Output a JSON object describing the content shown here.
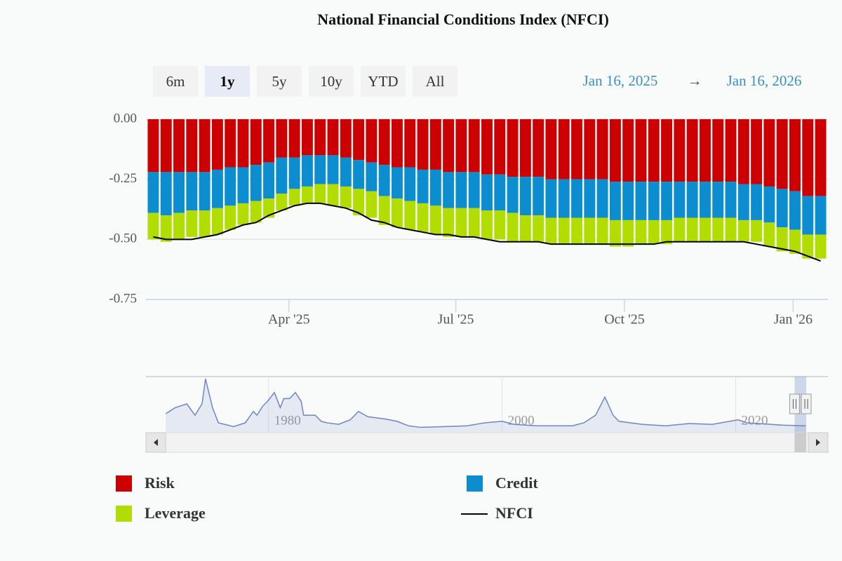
{
  "chart_data": {
    "type": "bar",
    "title": "National Financial Conditions Index (NFCI)",
    "range_selector": {
      "buttons": [
        "6m",
        "1y",
        "5y",
        "10y",
        "YTD",
        "All"
      ],
      "selected": 1,
      "from": "Jan 16, 2025",
      "arrow": "→",
      "to": "Jan 16, 2026"
    },
    "x": [
      "2025-01-17",
      "2025-01-24",
      "2025-01-31",
      "2025-02-07",
      "2025-02-14",
      "2025-02-21",
      "2025-02-28",
      "2025-03-07",
      "2025-03-14",
      "2025-03-21",
      "2025-03-28",
      "2025-04-04",
      "2025-04-11",
      "2025-04-18",
      "2025-04-25",
      "2025-05-02",
      "2025-05-09",
      "2025-05-16",
      "2025-05-23",
      "2025-05-30",
      "2025-06-06",
      "2025-06-13",
      "2025-06-20",
      "2025-06-27",
      "2025-07-04",
      "2025-07-11",
      "2025-07-18",
      "2025-07-25",
      "2025-08-01",
      "2025-08-08",
      "2025-08-15",
      "2025-08-22",
      "2025-08-29",
      "2025-09-05",
      "2025-09-12",
      "2025-09-19",
      "2025-09-26",
      "2025-10-03",
      "2025-10-10",
      "2025-10-17",
      "2025-10-24",
      "2025-10-31",
      "2025-11-07",
      "2025-11-14",
      "2025-11-21",
      "2025-11-28",
      "2025-12-05",
      "2025-12-12",
      "2025-12-19",
      "2025-12-26",
      "2026-01-02",
      "2026-01-09",
      "2026-01-16"
    ],
    "series": [
      {
        "name": "Risk",
        "color": "#cc0000",
        "values": [
          -0.22,
          -0.22,
          -0.22,
          -0.22,
          -0.22,
          -0.21,
          -0.2,
          -0.2,
          -0.19,
          -0.18,
          -0.16,
          -0.16,
          -0.15,
          -0.15,
          -0.15,
          -0.16,
          -0.17,
          -0.18,
          -0.19,
          -0.2,
          -0.2,
          -0.21,
          -0.21,
          -0.22,
          -0.22,
          -0.22,
          -0.23,
          -0.23,
          -0.24,
          -0.24,
          -0.24,
          -0.25,
          -0.25,
          -0.25,
          -0.25,
          -0.25,
          -0.26,
          -0.26,
          -0.26,
          -0.26,
          -0.26,
          -0.26,
          -0.26,
          -0.26,
          -0.26,
          -0.26,
          -0.27,
          -0.27,
          -0.28,
          -0.29,
          -0.3,
          -0.32,
          -0.32
        ]
      },
      {
        "name": "Credit",
        "color": "#0b8dcf",
        "values": [
          -0.17,
          -0.18,
          -0.17,
          -0.16,
          -0.16,
          -0.16,
          -0.16,
          -0.15,
          -0.15,
          -0.15,
          -0.15,
          -0.13,
          -0.13,
          -0.12,
          -0.12,
          -0.12,
          -0.12,
          -0.12,
          -0.13,
          -0.13,
          -0.14,
          -0.14,
          -0.15,
          -0.15,
          -0.15,
          -0.15,
          -0.15,
          -0.15,
          -0.15,
          -0.16,
          -0.16,
          -0.16,
          -0.16,
          -0.16,
          -0.16,
          -0.16,
          -0.16,
          -0.16,
          -0.16,
          -0.16,
          -0.16,
          -0.15,
          -0.15,
          -0.15,
          -0.15,
          -0.15,
          -0.15,
          -0.15,
          -0.15,
          -0.16,
          -0.16,
          -0.16,
          -0.16
        ]
      },
      {
        "name": "Leverage",
        "color": "#b2dd00",
        "values": [
          -0.11,
          -0.11,
          -0.11,
          -0.11,
          -0.11,
          -0.11,
          -0.1,
          -0.09,
          -0.09,
          -0.08,
          -0.07,
          -0.07,
          -0.07,
          -0.08,
          -0.09,
          -0.09,
          -0.11,
          -0.11,
          -0.12,
          -0.12,
          -0.12,
          -0.12,
          -0.12,
          -0.12,
          -0.12,
          -0.12,
          -0.12,
          -0.12,
          -0.12,
          -0.11,
          -0.11,
          -0.11,
          -0.11,
          -0.11,
          -0.11,
          -0.11,
          -0.11,
          -0.11,
          -0.1,
          -0.1,
          -0.1,
          -0.1,
          -0.1,
          -0.1,
          -0.1,
          -0.1,
          -0.09,
          -0.09,
          -0.1,
          -0.1,
          -0.1,
          -0.1,
          -0.1
        ]
      },
      {
        "name": "NFCI",
        "type": "line",
        "color": "#000000",
        "values": [
          -0.49,
          -0.5,
          -0.5,
          -0.5,
          -0.49,
          -0.48,
          -0.46,
          -0.44,
          -0.43,
          -0.4,
          -0.38,
          -0.36,
          -0.35,
          -0.35,
          -0.36,
          -0.37,
          -0.39,
          -0.42,
          -0.43,
          -0.45,
          -0.46,
          -0.47,
          -0.48,
          -0.48,
          -0.49,
          -0.49,
          -0.5,
          -0.51,
          -0.51,
          -0.51,
          -0.51,
          -0.52,
          -0.52,
          -0.52,
          -0.52,
          -0.52,
          -0.52,
          -0.52,
          -0.52,
          -0.52,
          -0.51,
          -0.51,
          -0.51,
          -0.51,
          -0.51,
          -0.51,
          -0.51,
          -0.52,
          -0.53,
          -0.54,
          -0.55,
          -0.57,
          -0.59
        ]
      }
    ],
    "xlim": [
      "2025-01-13",
      "2026-01-20"
    ],
    "xticks": [
      {
        "value": "2025-04-01",
        "label": "Apr '25"
      },
      {
        "value": "2025-07-01",
        "label": "Jul '25"
      },
      {
        "value": "2025-10-01",
        "label": "Oct '25"
      },
      {
        "value": "2026-01-01",
        "label": "Jan '26"
      }
    ],
    "ylim": [
      -0.75,
      0
    ],
    "yticks": [
      {
        "value": 0,
        "label": "0.00"
      },
      {
        "value": -0.25,
        "label": "-0.25"
      },
      {
        "value": -0.5,
        "label": "-0.50"
      },
      {
        "value": -0.75,
        "label": "-0.75"
      }
    ],
    "grid": true,
    "navigator": {
      "x": [
        1971.2,
        1972,
        1973,
        1973.7,
        1974.3,
        1974.6,
        1975.2,
        1975.7,
        1976.5,
        1977,
        1978,
        1978.7,
        1979,
        1979.5,
        1980,
        1980.5,
        1981,
        1981.3,
        1981.8,
        1982.3,
        1982.8,
        1983,
        1984,
        1984.5,
        1985,
        1986,
        1987,
        1987.7,
        1988.5,
        1990,
        1991,
        1992,
        1993,
        1995,
        1997,
        1998.5,
        2000,
        2001,
        2003,
        2005,
        2006,
        2007,
        2008,
        2008.8,
        2009.5,
        2010,
        2011,
        2012,
        2014,
        2016,
        2018,
        2020.2,
        2021,
        2022,
        2023,
        2024,
        2026
      ],
      "values": [
        0.25,
        0.65,
        0.9,
        0.15,
        0.9,
        2.55,
        0.65,
        -0.35,
        -0.5,
        -0.6,
        -0.35,
        0.4,
        0.15,
        0.75,
        1.15,
        1.65,
        0.65,
        1.25,
        1.25,
        1.65,
        1.05,
        0.15,
        0.15,
        -0.25,
        -0.35,
        -0.45,
        -0.15,
        0.4,
        0.05,
        -0.1,
        -0.25,
        -0.55,
        -0.65,
        -0.6,
        -0.55,
        -0.35,
        -0.25,
        -0.45,
        -0.55,
        -0.55,
        -0.55,
        -0.35,
        0.15,
        1.35,
        0.15,
        -0.25,
        -0.35,
        -0.45,
        -0.55,
        -0.4,
        -0.45,
        -0.15,
        -0.35,
        -0.4,
        -0.45,
        -0.5,
        -0.55
      ],
      "color": "#7085c4",
      "xlim": [
        1969.5,
        2027.9
      ],
      "ylim": [
        -1,
        2.7
      ],
      "xticks": [
        1980,
        2000,
        2020
      ],
      "selection": [
        2025.04,
        2026.04
      ]
    }
  }
}
